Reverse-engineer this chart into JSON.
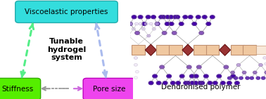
{
  "title_text": "Tunable\nhydrogel\nsystem",
  "box_viscoelastic": "Viscoelastic properties",
  "box_stiffness": "Stiffness",
  "box_poresize": "Pore size",
  "label_dendronised": "Dendronised polymer",
  "bg_color": "#ffffff",
  "cyan_box_color": "#33dddd",
  "cyan_box_edge": "#22aaaa",
  "green_box_color": "#55ee00",
  "green_box_edge": "#33aa00",
  "magenta_box_color": "#ee44ee",
  "magenta_box_edge": "#bb00bb",
  "arrow_green_color": "#55ee88",
  "arrow_blue_color": "#aabbee",
  "arrow_magenta_color": "#cc66dd",
  "arrow_gray_color": "#999999",
  "node_dark_color": "#4400aa",
  "node_mid_color": "#8855bb",
  "node_light_color": "#bb99dd",
  "node_vlight_color": "#ddccee",
  "node_faint_color": "#eeddff",
  "backbone_dark_fc": "#993333",
  "backbone_dark_ec": "#661111",
  "backbone_light_fc": "#f0c8a0",
  "backbone_light_ec": "#c09070",
  "backbone_very_light_fc": "#f8e8d8",
  "backbone_very_light_ec": "#d0a888",
  "edge_color": "#999999"
}
